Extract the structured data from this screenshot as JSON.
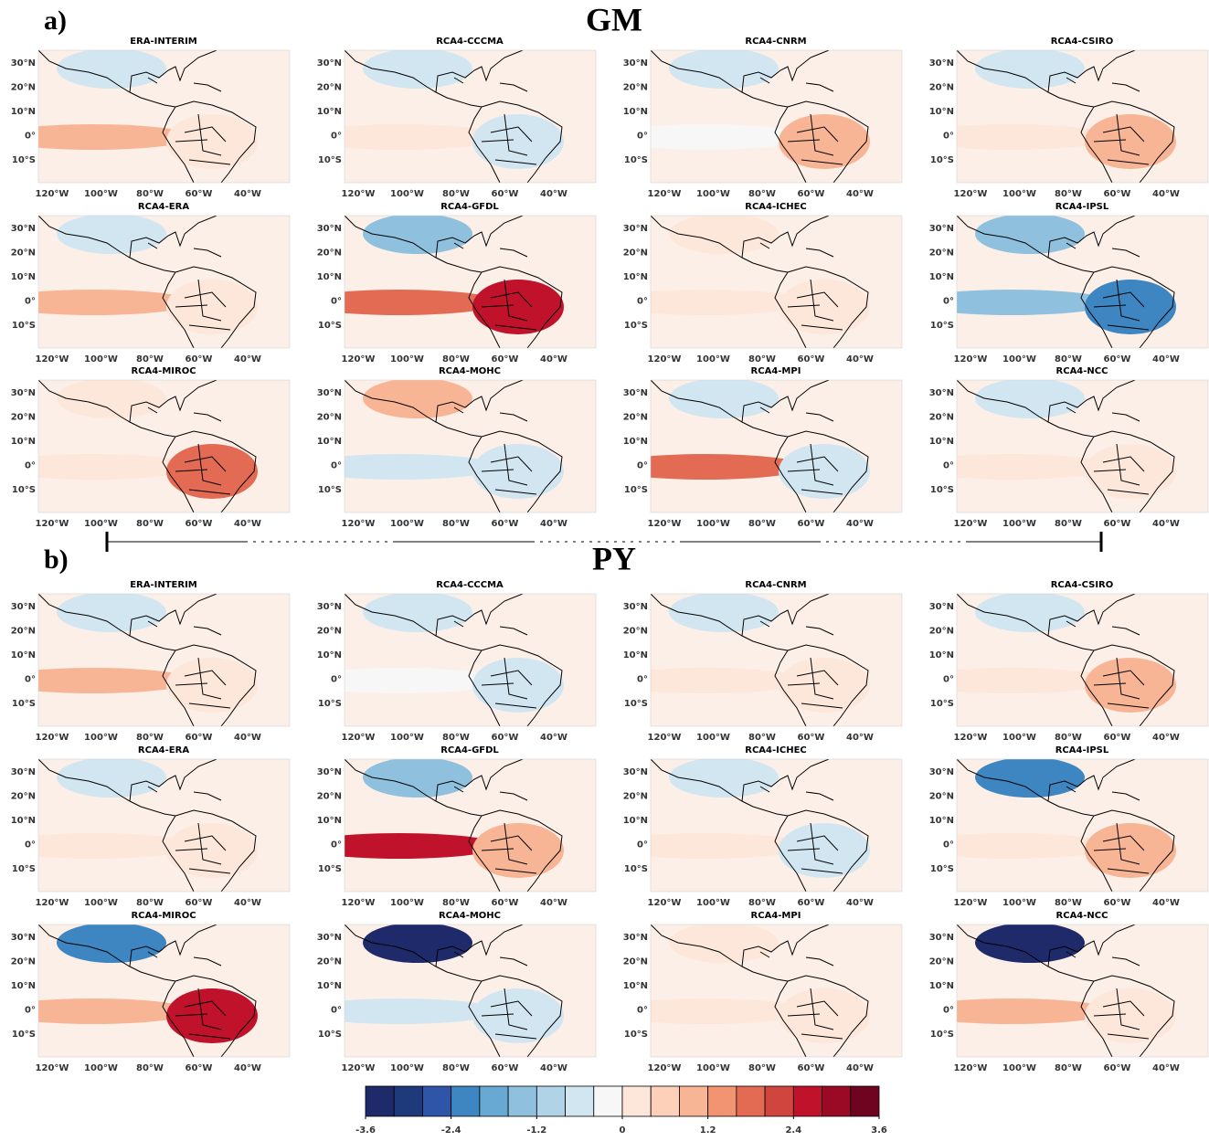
{
  "sections": [
    {
      "label": "a)",
      "title": "GM",
      "panels": [
        "ERA-INTERIM",
        "RCA4-CCCMA",
        "RCA4-CNRM",
        "RCA4-CSIRO",
        "RCA4-ERA",
        "RCA4-GFDL",
        "RCA4-ICHEC",
        "RCA4-IPSL",
        "RCA4-MIROC",
        "RCA4-MOHC",
        "RCA4-MPI",
        "RCA4-NCC"
      ]
    },
    {
      "label": "b)",
      "title": "PY",
      "panels": [
        "ERA-INTERIM",
        "RCA4-CCCMA",
        "RCA4-CNRM",
        "RCA4-CSIRO",
        "RCA4-ERA",
        "RCA4-GFDL",
        "RCA4-ICHEC",
        "RCA4-IPSL",
        "RCA4-MIROC",
        "RCA4-MOHC",
        "RCA4-MPI",
        "RCA4-NCC"
      ]
    }
  ],
  "axes": {
    "lat_labels": [
      "30°N",
      "20°N",
      "10°N",
      "0°",
      "10°S"
    ],
    "lon_labels": [
      "120°W",
      "100°W",
      "80°W",
      "60°W",
      "40°W"
    ]
  },
  "colorbar": {
    "lim": [
      -3.6,
      3.6
    ],
    "ticks": [
      -3.6,
      -2.4,
      -1.2,
      0,
      1.2,
      2.4,
      3.6
    ],
    "colors": [
      "#1f2a6b",
      "#1e3a7b",
      "#2f55a8",
      "#3d86c2",
      "#67a9d3",
      "#8fc1de",
      "#b0d3e8",
      "#d2e6f1",
      "#f7f7f7",
      "#fde6da",
      "#fcd0b9",
      "#f8b595",
      "#f29372",
      "#e36a53",
      "#d0453d",
      "#c0122b",
      "#9b0a25",
      "#6e0420"
    ]
  }
}
